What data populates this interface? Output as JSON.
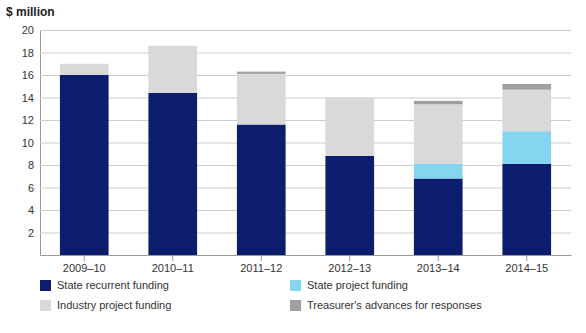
{
  "chart_data": {
    "type": "bar",
    "stacked": true,
    "ylabel": "$ million",
    "categories": [
      "2009–10",
      "2010–11",
      "2011–12",
      "2012–13",
      "2013–14",
      "2014–15"
    ],
    "series": [
      {
        "name": "State recurrent funding",
        "color": "#0d1d6e",
        "values": [
          16.0,
          14.4,
          11.6,
          8.8,
          6.8,
          8.1
        ]
      },
      {
        "name": "State project funding",
        "color": "#85d4f0",
        "values": [
          0.0,
          0.0,
          0.0,
          0.0,
          1.3,
          2.9
        ]
      },
      {
        "name": "Industry project funding",
        "color": "#d9d9d9",
        "values": [
          1.0,
          4.2,
          4.5,
          5.2,
          5.3,
          3.7
        ]
      },
      {
        "name": "Treasurer's advances for responses",
        "color": "#a0a0a0",
        "values": [
          0.0,
          0.0,
          0.2,
          0.0,
          0.3,
          0.5
        ]
      }
    ],
    "ylim": [
      0,
      20
    ],
    "yticks": [
      2,
      4,
      6,
      8,
      10,
      12,
      14,
      16,
      18,
      20
    ],
    "grid": true,
    "legend": "bottom"
  }
}
